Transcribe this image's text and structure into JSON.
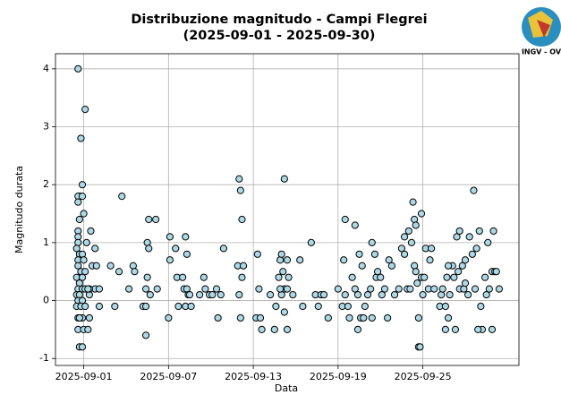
{
  "chart_data": {
    "type": "scatter",
    "title": "Distribuzione magnitudo - Campi Flegrei",
    "subtitle": "(2025-09-01 - 2025-09-30)",
    "x_label": "Data",
    "y_label": "Magnitudo durata",
    "logo_text": "INGV - OV",
    "color": "#add8e6",
    "edgecolor": "#000000",
    "grid": true,
    "xlim": [
      -2,
      30.8
    ],
    "ylim": [
      -1.12,
      4.26
    ],
    "xticks": [
      {
        "value": 0,
        "label": "2025-09-01"
      },
      {
        "value": 6,
        "label": "2025-09-07"
      },
      {
        "value": 12,
        "label": "2025-09-13"
      },
      {
        "value": 18,
        "label": "2025-09-19"
      },
      {
        "value": 24,
        "label": "2025-09-25"
      }
    ],
    "yticks": [
      -1,
      0,
      1,
      2,
      3,
      4
    ],
    "x": [
      -0.4,
      -0.3,
      -0.4,
      -0.4,
      -0.2,
      -0.1,
      0.1,
      -0.1,
      0,
      -0.3,
      -0.4,
      -0.4,
      -0.4,
      -0.5,
      -0.3,
      -0.1,
      -0.4,
      0,
      -0.4,
      -0.2,
      0.1,
      -0.5,
      -0.1,
      -0.3,
      -0.4,
      -0.1,
      0.1,
      -0.5,
      -0.3,
      -0.4,
      -0.1,
      -0.5,
      -0.2,
      0.1,
      -0.4,
      -0.1,
      -0.4,
      0,
      -0.3,
      -0.1,
      -0.3,
      0.3,
      0.4,
      0.5,
      0.6,
      0.8,
      0.8,
      0.9,
      1.1,
      1.1,
      0.4,
      0.4,
      0.3,
      0.2,
      1.9,
      2.2,
      2.5,
      2.7,
      3.2,
      3.5,
      3.6,
      4.2,
      4.4,
      4.4,
      4.5,
      4.6,
      4.6,
      4.4,
      4.7,
      5.1,
      5.2,
      4.5,
      6.0,
      6.1,
      6.1,
      6.5,
      6.6,
      6.7,
      7.0,
      7.1,
      7.2,
      7.2,
      7.3,
      7.3,
      7.4,
      7.5,
      7.6,
      8.2,
      8.5,
      8.6,
      8.9,
      9.1,
      9.4,
      9.5,
      9.7,
      9.9,
      10.9,
      11.0,
      11.1,
      11.2,
      11.3,
      11.1,
      11.0,
      11.2,
      12.3,
      12.4,
      12.2,
      12.5,
      12.6,
      13.2,
      13.5,
      13.6,
      13.8,
      13.9,
      14.0,
      14.1,
      14.2,
      14.2,
      14.2,
      14.4,
      14.4,
      14.5,
      14.0,
      13.9,
      14.4,
      14.8,
      15.3,
      15.5,
      16.1,
      16.4,
      16.6,
      16.8,
      17.0,
      17.3,
      18.0,
      18.3,
      18.4,
      18.5,
      18.5,
      18.7,
      18.8,
      19.0,
      19.2,
      19.2,
      19.4,
      19.4,
      19.5,
      19.6,
      19.7,
      19.8,
      19.9,
      20.1,
      20.3,
      20.4,
      20.4,
      20.6,
      20.7,
      20.8,
      21.0,
      21.1,
      21.3,
      21.5,
      21.6,
      21.8,
      22.0,
      22.3,
      22.5,
      22.7,
      22.7,
      22.9,
      23.0,
      23.1,
      23.2,
      23.3,
      23.4,
      23.4,
      23.5,
      23.5,
      23.6,
      23.7,
      23.7,
      23.8,
      23.9,
      23.9,
      24.0,
      24.1,
      24.2,
      24.4,
      24.5,
      24.6,
      24.8,
      25.2,
      25.3,
      25.4,
      25.6,
      25.7,
      25.8,
      25.9,
      26.1,
      26.2,
      26.4,
      26.5,
      26.6,
      26.6,
      26.8,
      26.9,
      27.0,
      27.2,
      27.3,
      27.5,
      27.6,
      27.7,
      27.8,
      28.0,
      28.1,
      28.2,
      28.4,
      28.5,
      28.6,
      28.7,
      28.9,
      28.9,
      29.1,
      29.0,
      29.2,
      29.4,
      27.9,
      27.0,
      26.3,
      25.6,
      25.8
    ],
    "values": [
      4.0,
      1.8,
      1.8,
      1.7,
      2.8,
      2.0,
      3.3,
      1.8,
      1.5,
      1.4,
      1.2,
      1.1,
      1.0,
      0.9,
      0.8,
      0.8,
      0.7,
      0.7,
      0.6,
      0.5,
      0.5,
      0.4,
      0.4,
      0.3,
      0.2,
      0.2,
      0.2,
      0.1,
      0.1,
      0,
      0,
      -0.1,
      -0.1,
      -0.1,
      -0.3,
      -0.3,
      -0.5,
      -0.5,
      -0.8,
      -0.8,
      -0.3,
      -0.5,
      -0.3,
      1.2,
      0.6,
      0.9,
      0.2,
      0.6,
      0.2,
      -0.1,
      0.1,
      0.2,
      0.2,
      1.0,
      0.6,
      -0.1,
      0.5,
      1.8,
      0.2,
      0.6,
      0.5,
      -0.1,
      -0.1,
      0.2,
      1.0,
      0.9,
      1.4,
      -0.6,
      0.1,
      1.4,
      0.2,
      0.4,
      -0.3,
      1.1,
      0.7,
      0.9,
      0.4,
      -0.1,
      0.4,
      0.2,
      1.1,
      -0.1,
      0.8,
      0.2,
      0.1,
      0.1,
      -0.1,
      0.1,
      0.4,
      0.2,
      0.1,
      0.1,
      0.2,
      -0.3,
      0.1,
      0.9,
      0.6,
      2.1,
      1.9,
      1.4,
      0.6,
      -0.3,
      0.1,
      0.4,
      0.8,
      0.2,
      -0.3,
      -0.3,
      -0.5,
      0.1,
      -0.5,
      -0.1,
      0.4,
      0.7,
      0.8,
      0.5,
      2.1,
      0.2,
      -0.2,
      -0.5,
      0.7,
      0.4,
      0.1,
      0.2,
      0.2,
      0.1,
      0.7,
      -0.1,
      1.0,
      0.1,
      -0.1,
      0.1,
      0.1,
      -0.3,
      0.2,
      -0.1,
      0.7,
      1.4,
      0.1,
      -0.1,
      -0.3,
      0.4,
      0.2,
      1.3,
      0.1,
      -0.5,
      0.8,
      -0.3,
      0.6,
      -0.3,
      -0.1,
      0.1,
      0.2,
      1.0,
      -0.3,
      0.8,
      0.4,
      0.5,
      0.4,
      0.1,
      0.2,
      -0.3,
      0.7,
      0.6,
      0.1,
      0.2,
      0.9,
      0.8,
      1.1,
      0.2,
      1.2,
      0.2,
      1.0,
      1.7,
      1.4,
      0.6,
      1.3,
      0.5,
      0.3,
      -0.3,
      -0.8,
      -0.8,
      0.4,
      1.5,
      0.1,
      0.4,
      0.9,
      0.2,
      0.7,
      0.9,
      0.2,
      -0.1,
      0.1,
      0.2,
      -0.1,
      0.4,
      -0.3,
      0.1,
      0.6,
      0.4,
      1.1,
      0.5,
      0.2,
      1.2,
      0.6,
      0.2,
      0.7,
      0.1,
      1.1,
      0.8,
      1.9,
      0.2,
      0.9,
      1.2,
      -0.1,
      -0.5,
      0.4,
      0.1,
      1.0,
      0.2,
      -0.5,
      0.5,
      0.5,
      1.2,
      0.5,
      0.2,
      -0.5,
      0.3,
      -0.5,
      -0.5,
      0.6
    ]
  }
}
